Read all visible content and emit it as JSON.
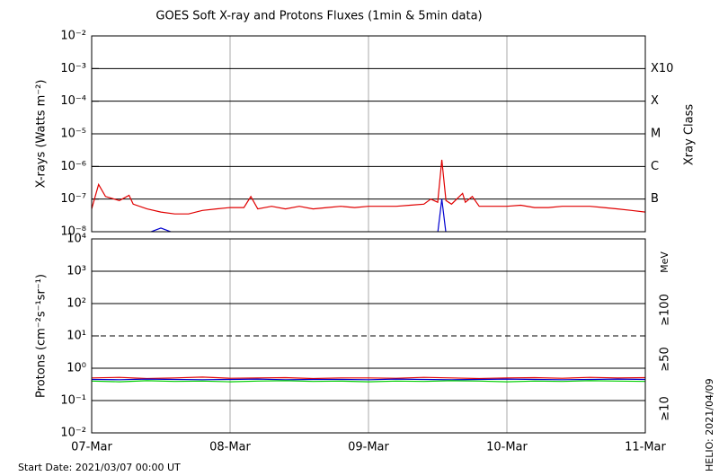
{
  "chart_data": [
    {
      "type": "line",
      "title": "GOES Soft X-ray and Protons Fluxes   (1min & 5min data)",
      "y_label": "X-rays (Watts m⁻²)",
      "log_scale": true,
      "grid": true,
      "ylim": [
        1e-08,
        0.01
      ],
      "yticks": [
        {
          "value": 1e-08,
          "label": "10⁻⁸"
        },
        {
          "value": 1e-07,
          "label": "10⁻⁷"
        },
        {
          "value": 1e-06,
          "label": "10⁻⁶"
        },
        {
          "value": 1e-05,
          "label": "10⁻⁵"
        },
        {
          "value": 0.0001,
          "label": "10⁻⁴"
        },
        {
          "value": 0.001,
          "label": "10⁻³"
        },
        {
          "value": 0.01,
          "label": "10⁻²"
        }
      ],
      "y2_label": "Xray Class",
      "y2ticks": [
        {
          "value": 0.001,
          "label": "X10"
        },
        {
          "value": 0.0001,
          "label": "X"
        },
        {
          "value": 1e-05,
          "label": "M"
        },
        {
          "value": 1e-06,
          "label": "C"
        },
        {
          "value": 1e-07,
          "label": "B"
        }
      ],
      "xlim": [
        0,
        4
      ],
      "xticks": [
        {
          "value": 0,
          "label": "07-Mar"
        },
        {
          "value": 1,
          "label": "08-Mar"
        },
        {
          "value": 2,
          "label": "09-Mar"
        },
        {
          "value": 3,
          "label": "10-Mar"
        },
        {
          "value": 4,
          "label": "11-Mar"
        }
      ],
      "x": [
        0,
        0.05,
        0.1,
        0.2,
        0.27,
        0.3,
        0.4,
        0.5,
        0.6,
        0.7,
        0.8,
        0.9,
        1.0,
        1.1,
        1.15,
        1.2,
        1.3,
        1.4,
        1.5,
        1.6,
        1.7,
        1.8,
        1.9,
        2.0,
        2.1,
        2.2,
        2.3,
        2.4,
        2.45,
        2.5,
        2.53,
        2.56,
        2.6,
        2.68,
        2.7,
        2.75,
        2.8,
        2.9,
        3.0,
        3.1,
        3.2,
        3.3,
        3.4,
        3.5,
        3.6,
        3.7,
        3.8,
        3.9,
        4.0
      ],
      "series": [
        {
          "color": "#e00000",
          "values": [
            5e-08,
            2.8e-07,
            1.2e-07,
            9e-08,
            1.3e-07,
            7e-08,
            5e-08,
            4e-08,
            3.5e-08,
            3.5e-08,
            4.5e-08,
            5e-08,
            5.5e-08,
            5.5e-08,
            1.2e-07,
            5e-08,
            6e-08,
            5e-08,
            6e-08,
            5e-08,
            5.5e-08,
            6e-08,
            5.5e-08,
            6e-08,
            6e-08,
            6e-08,
            6.5e-08,
            7e-08,
            1e-07,
            8e-08,
            1.6e-06,
            9e-08,
            7e-08,
            1.5e-07,
            8e-08,
            1.2e-07,
            6e-08,
            6e-08,
            6e-08,
            6.5e-08,
            5.5e-08,
            5.5e-08,
            6e-08,
            6e-08,
            6e-08,
            5.5e-08,
            5e-08,
            4.5e-08,
            4e-08
          ]
        },
        {
          "color": "#0000d0",
          "values": [
            null,
            null,
            null,
            null,
            null,
            null,
            9e-09,
            1.3e-08,
            9e-09,
            null,
            null,
            null,
            null,
            null,
            null,
            null,
            null,
            null,
            null,
            null,
            null,
            null,
            null,
            null,
            null,
            null,
            null,
            null,
            null,
            9e-09,
            1e-07,
            9e-09,
            null,
            null,
            null,
            null,
            null,
            null,
            null,
            null,
            null,
            null,
            null,
            null,
            null,
            null,
            null,
            null,
            null
          ]
        }
      ]
    },
    {
      "type": "line",
      "y_label": "Protons (cm⁻²s⁻¹sr⁻¹)",
      "log_scale": true,
      "grid": true,
      "threshold": 10,
      "unit_label": "MeV",
      "ylim": [
        0.01,
        10000
      ],
      "yticks": [
        {
          "value": 0.01,
          "label": "10⁻²"
        },
        {
          "value": 0.1,
          "label": "10⁻¹"
        },
        {
          "value": 1,
          "label": "10⁰"
        },
        {
          "value": 10,
          "label": "10¹"
        },
        {
          "value": 100,
          "label": "10²"
        },
        {
          "value": 1000,
          "label": "10³"
        },
        {
          "value": 10000,
          "label": "10⁴"
        }
      ],
      "xlim": [
        0,
        4
      ],
      "x": [
        0,
        0.2,
        0.4,
        0.6,
        0.8,
        1.0,
        1.2,
        1.4,
        1.6,
        1.8,
        2.0,
        2.2,
        2.4,
        2.6,
        2.8,
        3.0,
        3.2,
        3.4,
        3.6,
        3.8,
        4.0
      ],
      "series": [
        {
          "name": "≥10",
          "color": "#e00000",
          "values": [
            0.5,
            0.52,
            0.48,
            0.5,
            0.53,
            0.49,
            0.5,
            0.51,
            0.48,
            0.5,
            0.5,
            0.49,
            0.52,
            0.5,
            0.48,
            0.5,
            0.51,
            0.49,
            0.52,
            0.5,
            0.51
          ]
        },
        {
          "name": "≥50",
          "color": "#0000d0",
          "values": [
            0.45,
            0.44,
            0.46,
            0.45,
            0.44,
            0.45,
            0.46,
            0.44,
            0.45,
            0.45,
            0.44,
            0.46,
            0.45,
            0.44,
            0.45,
            0.46,
            0.45,
            0.44,
            0.45,
            0.46,
            0.45
          ]
        },
        {
          "name": "≥100",
          "color": "#00d000",
          "values": [
            0.4,
            0.38,
            0.41,
            0.39,
            0.4,
            0.38,
            0.4,
            0.41,
            0.39,
            0.4,
            0.38,
            0.4,
            0.39,
            0.41,
            0.4,
            0.38,
            0.4,
            0.39,
            0.41,
            0.4,
            0.39
          ]
        }
      ]
    }
  ],
  "footer": {
    "start_date": "Start Date: 2021/03/07 00:00 UT",
    "created": "HELIO: 2021/04/09"
  }
}
